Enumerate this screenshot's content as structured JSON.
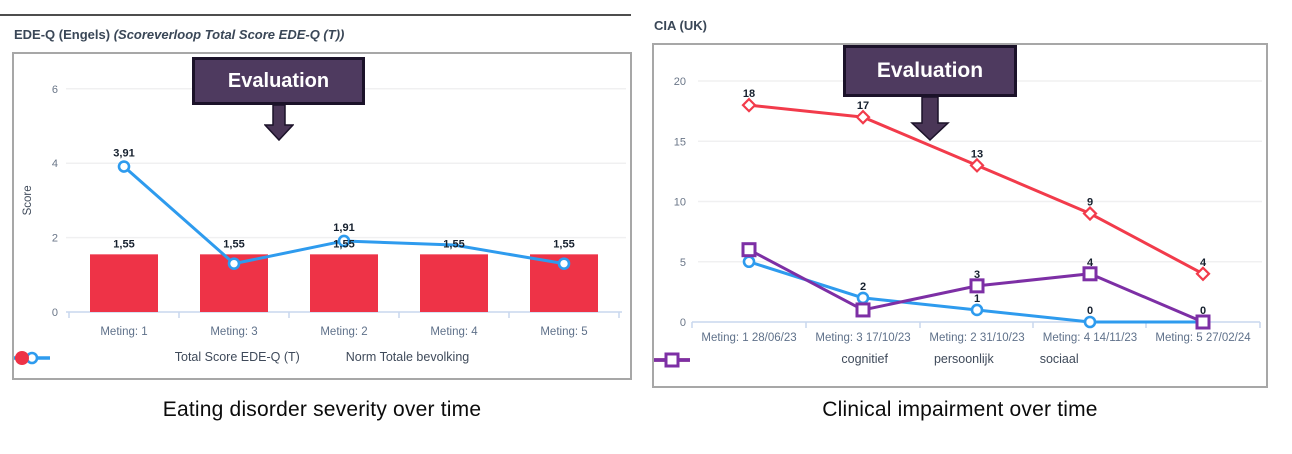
{
  "captions": {
    "left": "Eating disorder severity over time",
    "right": "Clinical impairment over time"
  },
  "annotation_label": "Evaluation",
  "colors": {
    "blue": "#2e9bee",
    "bar_red": "#ee3347",
    "line_red": "#f23b4b",
    "purple": "#7d2fa5",
    "annotation_bg": "#4e3a5f",
    "annotation_border": "#1b1229"
  },
  "chart_data": [
    {
      "type": "bar+line combo",
      "title_main": "EDE-Q (Engels)",
      "title_sub": "(Scoreverloop Total Score EDE-Q (T))",
      "ylabel": "Score",
      "yticks": [
        0,
        2,
        4,
        6
      ],
      "ylim": [
        0,
        6.6
      ],
      "grid": true,
      "legend_position": "bottom",
      "categories": [
        "Meting: 1",
        "Meting: 3",
        "Meting: 2",
        "Meting: 4",
        "Meting: 5"
      ],
      "series": [
        {
          "name": "Total Score EDE-Q (T)",
          "kind": "line",
          "marker": "circle",
          "color": "#2e9bee",
          "values": [
            3.91,
            1.3,
            1.91,
            1.8,
            1.3
          ],
          "labels": [
            "3,91",
            null,
            "1,91",
            null,
            null
          ],
          "markers_shown": [
            true,
            true,
            true,
            false,
            true
          ]
        },
        {
          "name": "Norm Totale bevolking",
          "kind": "bar",
          "color": "#ee3347",
          "values": [
            1.55,
            1.55,
            1.55,
            1.55,
            1.55
          ],
          "labels": [
            "1,55",
            "1,55",
            "1,55",
            "1,55",
            "1,55"
          ]
        }
      ]
    },
    {
      "type": "line",
      "title_main": "CIA (UK)",
      "title_sub": "",
      "ylabel": "",
      "yticks": [
        0,
        5,
        10,
        15,
        20
      ],
      "ylim": [
        0,
        22
      ],
      "grid": true,
      "legend_position": "bottom",
      "categories": [
        "Meting: 1 28/06/23",
        "Meting: 3 17/10/23",
        "Meting: 2 31/10/23",
        "Meting: 4 14/11/23",
        "Meting: 5 27/02/24"
      ],
      "series": [
        {
          "name": "cognitief",
          "kind": "line",
          "marker": "circle",
          "color": "#2e9bee",
          "values": [
            5,
            2,
            1,
            0,
            0
          ],
          "labels": [
            "5",
            "2",
            "1",
            "0",
            null
          ]
        },
        {
          "name": "persoonlijk",
          "kind": "line",
          "marker": "diamond",
          "color": "#f23b4b",
          "values": [
            18,
            17,
            13,
            9,
            4
          ],
          "labels": [
            "18",
            "17",
            "13",
            "9",
            "4"
          ]
        },
        {
          "name": "sociaal",
          "kind": "line",
          "marker": "square",
          "color": "#7d2fa5",
          "values": [
            6,
            1,
            3,
            4,
            0
          ],
          "labels": [
            null,
            null,
            "3",
            "4",
            "0"
          ]
        }
      ]
    }
  ]
}
